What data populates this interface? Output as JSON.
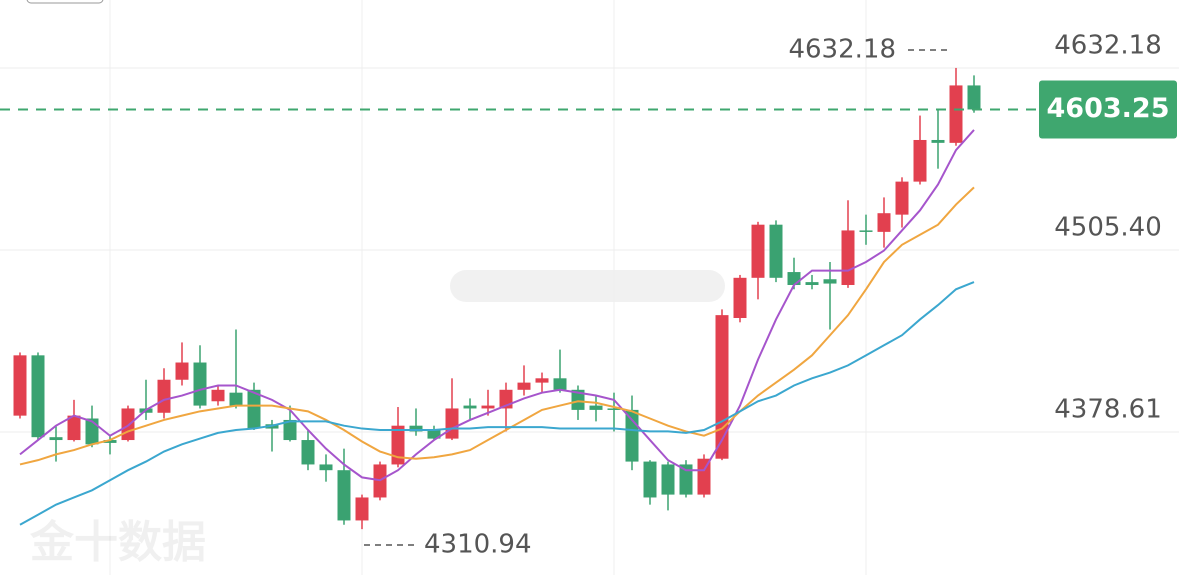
{
  "chart_data": {
    "type": "candlestick",
    "candles": {
      "open": [
        4390,
        4432,
        4375,
        4373,
        4388,
        4373,
        4373,
        4395,
        4392,
        4415,
        4427,
        4400,
        4406,
        4408,
        4384,
        4387,
        4373,
        4356,
        4352,
        4317,
        4333,
        4356,
        4383,
        4380,
        4374,
        4397,
        4395,
        4395,
        4408,
        4413,
        4416,
        4408,
        4397,
        4395,
        4394,
        4358,
        4356,
        4356,
        4335,
        4360,
        4458,
        4486,
        4523,
        4490,
        4483,
        4485,
        4481,
        4519,
        4518,
        4530,
        4553,
        4582,
        4580,
        4620
      ],
      "high": [
        4434,
        4434,
        4383,
        4401,
        4397,
        4376,
        4397,
        4415,
        4423,
        4441,
        4439,
        4411,
        4450,
        4413,
        4387,
        4397,
        4380,
        4363,
        4367,
        4335,
        4358,
        4396,
        4395,
        4383,
        4416,
        4402,
        4408,
        4413,
        4425,
        4420,
        4436,
        4411,
        4404,
        4406,
        4404,
        4359,
        4358,
        4359,
        4363,
        4464,
        4488,
        4525,
        4526,
        4500,
        4488,
        4497,
        4540,
        4530,
        4542,
        4556,
        4599,
        4603,
        4632.18,
        4627
      ],
      "low": [
        4388,
        4373,
        4358,
        4372,
        4368,
        4363,
        4372,
        4387,
        4388,
        4411,
        4395,
        4397,
        4395,
        4380,
        4365,
        4372,
        4352,
        4344,
        4314,
        4310.94,
        4331,
        4354,
        4376,
        4373,
        4373,
        4387,
        4390,
        4379,
        4404,
        4406,
        4406,
        4387,
        4386,
        4379,
        4352,
        4328,
        4324,
        4333,
        4333,
        4359,
        4455,
        4471,
        4483,
        4478,
        4478,
        4450,
        4479,
        4509,
        4507,
        4521,
        4551,
        4562,
        4578,
        4601
      ],
      "close": [
        4432,
        4375,
        4373,
        4390,
        4370,
        4371,
        4395,
        4392,
        4415,
        4427,
        4397,
        4408,
        4397,
        4381,
        4381,
        4373,
        4356,
        4352,
        4317,
        4333,
        4356,
        4383,
        4379,
        4374,
        4395,
        4395,
        4397,
        4408,
        4413,
        4416,
        4408,
        4394,
        4394,
        4394,
        4358,
        4333,
        4335,
        4335,
        4360,
        4460,
        4486,
        4523,
        4486,
        4481,
        4481,
        4482,
        4519,
        4518,
        4531,
        4553,
        4582,
        4580,
        4620,
        4603.25
      ],
      "up_color": "#e2404f",
      "down_color": "#3aa271"
    },
    "lines": [
      {
        "color": "#a655cc",
        "values": [
          4363,
          4373,
          4383,
          4390,
          4386,
          4376,
          4383,
          4394,
          4401,
          4404,
          4408,
          4411,
          4411,
          4406,
          4401,
          4394,
          4380,
          4367,
          4356,
          4347,
          4345,
          4352,
          4363,
          4373,
          4381,
          4387,
          4392,
          4397,
          4402,
          4406,
          4408,
          4406,
          4404,
          4401,
          4387,
          4373,
          4359,
          4352,
          4352,
          4373,
          4397,
          4429,
          4457,
          4481,
          4491,
          4491,
          4491,
          4497,
          4505,
          4519,
          4533,
          4551,
          4575,
          4589
        ]
      },
      {
        "color": "#f0a640",
        "values": [
          4356,
          4359,
          4363,
          4366,
          4370,
          4373,
          4379,
          4383,
          4387,
          4390,
          4393,
          4395,
          4397,
          4397,
          4397,
          4395,
          4393,
          4387,
          4380,
          4372,
          4365,
          4361,
          4360,
          4361,
          4363,
          4366,
          4373,
          4380,
          4387,
          4394,
          4397,
          4400,
          4399,
          4396,
          4393,
          4388,
          4383,
          4379,
          4376,
          4381,
          4393,
          4404,
          4413,
          4422,
          4432,
          4446,
          4460,
          4478,
          4497,
          4509,
          4516,
          4523,
          4537,
          4549
        ]
      },
      {
        "color": "#3ba7cf",
        "values": [
          4314,
          4321,
          4328,
          4333,
          4338,
          4345,
          4352,
          4358,
          4365,
          4370,
          4374,
          4378,
          4380,
          4381,
          4383,
          4386,
          4386,
          4386,
          4383,
          4381,
          4380,
          4380,
          4380,
          4380,
          4381,
          4381,
          4382,
          4382,
          4382,
          4382,
          4381,
          4381,
          4381,
          4381,
          4380,
          4379,
          4379,
          4378,
          4380,
          4386,
          4393,
          4400,
          4404,
          4411,
          4416,
          4420,
          4425,
          4432,
          4439,
          4446,
          4457,
          4467,
          4478,
          4483
        ]
      }
    ],
    "ylim": [
      4279,
      4679.5
    ],
    "yticks": [
      4378.61,
      {
        "value": 4505.4,
        "label": "4505.40"
      },
      4632.18
    ],
    "grid": true,
    "last_price": {
      "value": 4603.25,
      "color": "#3fa76f"
    },
    "high_marker": 4632.18,
    "low_marker": 4310.94,
    "watermark": "金十数据"
  }
}
